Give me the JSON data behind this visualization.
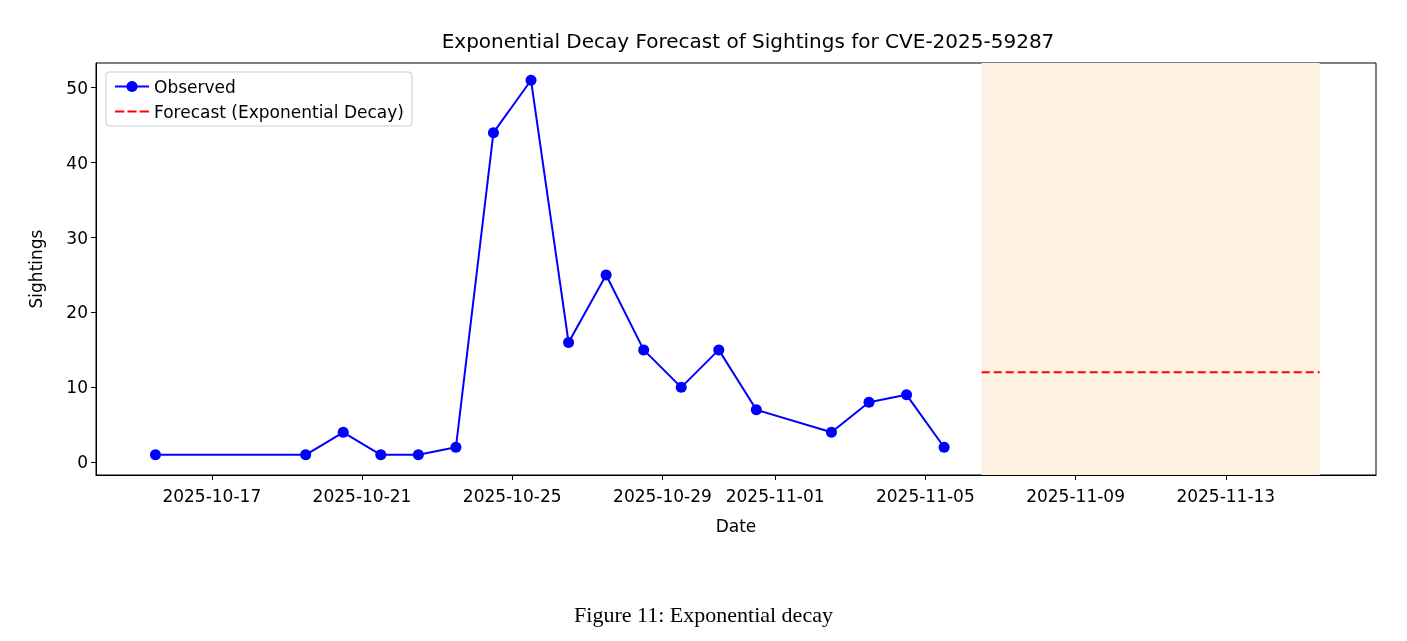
{
  "chart_data": {
    "type": "line",
    "title": "Exponential Decay Forecast of Sightings for CVE-2025-59287",
    "xlabel": "Date",
    "ylabel": "Sightings",
    "x": [
      "2025-10-15T12:00",
      "2025-10-19T12:00",
      "2025-10-20T12:00",
      "2025-10-21T12:00",
      "2025-10-22T12:00",
      "2025-10-23T12:00",
      "2025-10-24T12:00",
      "2025-10-25T12:00",
      "2025-10-26T12:00",
      "2025-10-27T12:00",
      "2025-10-28T12:00",
      "2025-10-29T12:00",
      "2025-10-30T12:00",
      "2025-10-31T12:00",
      "2025-11-02T12:00",
      "2025-11-03T12:00",
      "2025-11-04T12:00",
      "2025-11-05T12:00"
    ],
    "series": [
      {
        "name": "Observed",
        "color": "#0000ff",
        "values": [
          1,
          1,
          4,
          1,
          1,
          2,
          44,
          51,
          16,
          25,
          15,
          10,
          15,
          7,
          4,
          8,
          9,
          2
        ]
      },
      {
        "name": "Forecast (Exponential Decay)",
        "color": "#ff0000",
        "x": [
          "2025-11-06T12:00",
          "2025-11-15T12:00"
        ],
        "values": [
          12,
          12
        ],
        "marker": "none",
        "line_style": "dashed"
      }
    ],
    "marker": "circle",
    "line_style": "solid",
    "xlim": [
      "2025-10-13T22:00",
      "2025-11-17T00:00"
    ],
    "xticks": [
      "2025-10-17",
      "2025-10-21",
      "2025-10-25",
      "2025-10-29",
      "2025-11-01",
      "2025-11-05",
      "2025-11-09",
      "2025-11-13"
    ],
    "ylim": [
      -1.7,
      53.3
    ],
    "yticks": [
      0,
      10,
      20,
      30,
      40,
      50
    ],
    "bands": [
      {
        "axis": "x",
        "from": "2025-11-06T12:00",
        "to": "2025-11-15T12:00",
        "color": "#fdf1e1"
      }
    ],
    "legend": "top left",
    "annotations": [
      "Figure 11: Exponential decay"
    ]
  }
}
